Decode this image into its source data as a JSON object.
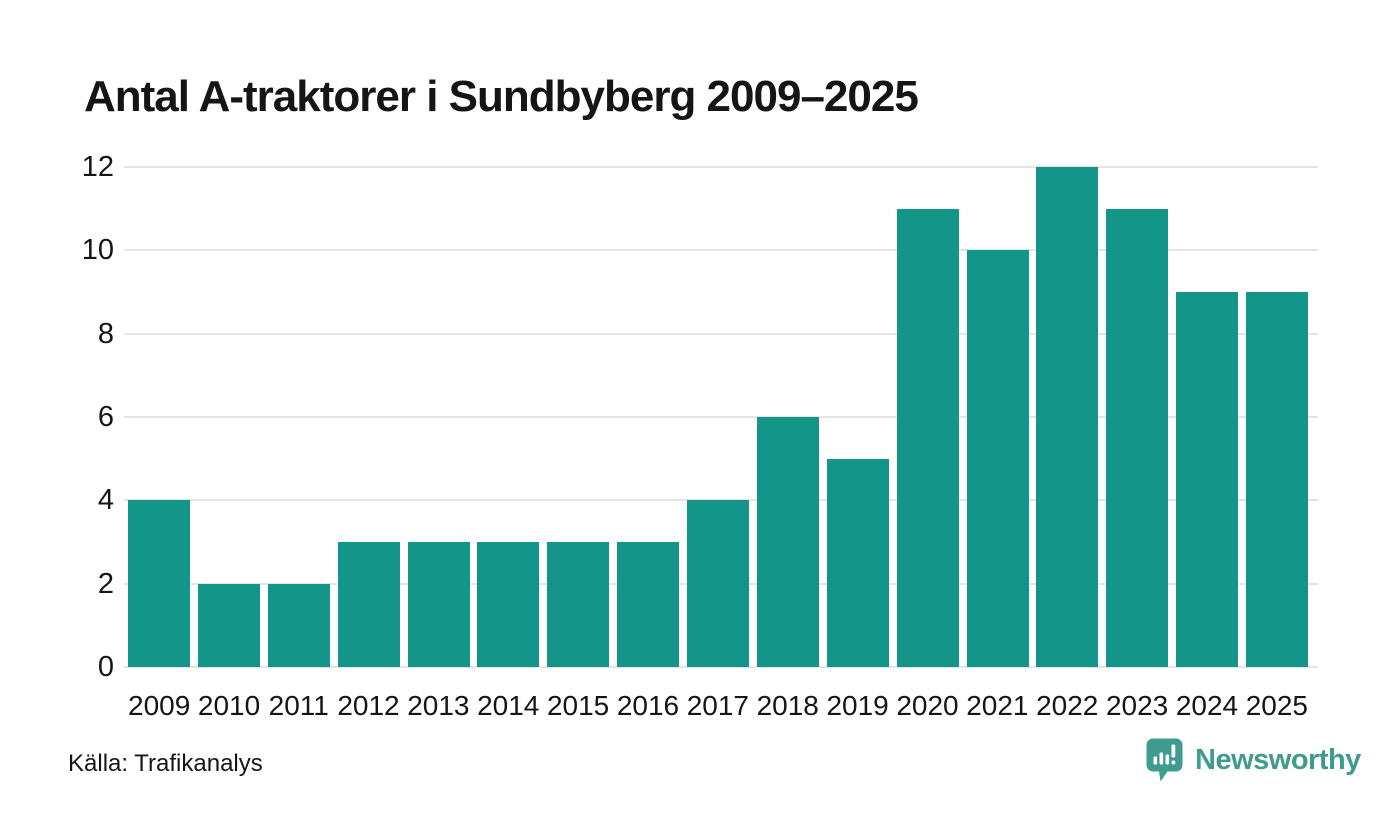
{
  "title": "Antal A-traktorer i Sundbyberg 2009–2025",
  "source": "Källa: Trafikanalys",
  "branding": {
    "name": "Newsworthy",
    "icon": "newsworthy-speech-bubble-chart-icon"
  },
  "colors": {
    "bar": "#14958a",
    "grid": "#e4e4e4",
    "text": "#151515",
    "brand": "#3f9b8f",
    "background": "#ffffff"
  },
  "chart_data": {
    "type": "bar",
    "title": "Antal A-traktorer i Sundbyberg 2009–2025",
    "categories": [
      "2009",
      "2010",
      "2011",
      "2012",
      "2013",
      "2014",
      "2015",
      "2016",
      "2017",
      "2018",
      "2019",
      "2020",
      "2021",
      "2022",
      "2023",
      "2024",
      "2025"
    ],
    "values": [
      4,
      2,
      2,
      3,
      3,
      3,
      3,
      3,
      4,
      6,
      5,
      11,
      10,
      12,
      11,
      9,
      9
    ],
    "xlabel": "",
    "ylabel": "",
    "ylim": [
      0,
      12
    ],
    "yticks": [
      0,
      2,
      4,
      6,
      8,
      10,
      12
    ],
    "grid": true,
    "legend": false,
    "bar_color": "#14958a"
  }
}
